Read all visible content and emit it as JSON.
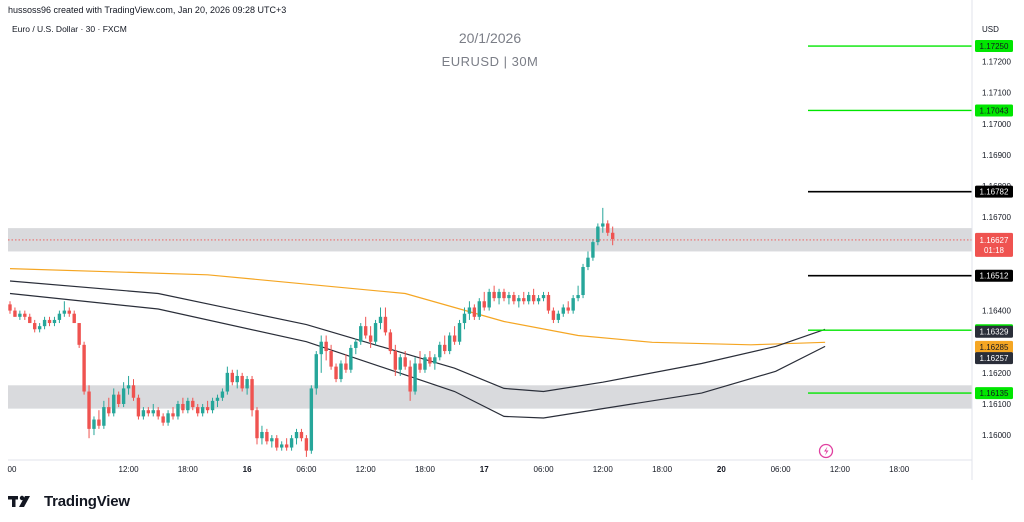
{
  "header": {
    "credit": "hussoss96 created with TradingView.com, Jan 20, 2026 09:28 UTC+3",
    "symbol_line": "Euro / U.S. Dollar · 30 · FXCM",
    "watermark_date": "20/1/2026",
    "watermark_symbol": "EURUSD | 30M",
    "currency": "USD"
  },
  "footer": {
    "brand": "TradingView"
  },
  "colors": {
    "bull": "#26a69a",
    "bear": "#ef5350",
    "ma_orange": "#f5a623",
    "ma_dark": "#2a2e39",
    "green_level": "#00e600",
    "black_level": "#000000",
    "zone": "#d9dadd"
  },
  "chart_data": {
    "type": "candlestick",
    "symbol": "EURUSD",
    "timeframe": "30",
    "currency": "USD",
    "ylim": [
      1.1592,
      1.1734
    ],
    "y_ticks": [
      1.172,
      1.171,
      1.17,
      1.169,
      1.168,
      1.167,
      1.164,
      1.162,
      1.161,
      1.16
    ],
    "x_tick_labels": [
      {
        "label": "00",
        "bar": 0
      },
      {
        "label": "12:00",
        "bar": 24
      },
      {
        "label": "18:00",
        "bar": 36
      },
      {
        "label": "16",
        "bar": 48,
        "bold": true
      },
      {
        "label": "06:00",
        "bar": 60
      },
      {
        "label": "12:00",
        "bar": 72
      },
      {
        "label": "18:00",
        "bar": 84
      },
      {
        "label": "17",
        "bar": 96,
        "bold": true
      },
      {
        "label": "06:00",
        "bar": 108
      },
      {
        "label": "12:00",
        "bar": 120
      },
      {
        "label": "18:00",
        "bar": 132
      },
      {
        "label": "20",
        "bar": 144,
        "bold": true
      },
      {
        "label": "06:00",
        "bar": 156
      },
      {
        "label": "12:00",
        "bar": 168
      },
      {
        "label": "18:00",
        "bar": 180
      }
    ],
    "last_price": {
      "value": 1.16627,
      "countdown": "01:18"
    },
    "horizontal_levels": [
      {
        "value": 1.1725,
        "label": "1.17250",
        "color": "green"
      },
      {
        "value": 1.17043,
        "label": "1.17043",
        "color": "green"
      },
      {
        "value": 1.16782,
        "label": "1.16782",
        "color": "black"
      },
      {
        "value": 1.16512,
        "label": "1.16512",
        "color": "black"
      },
      {
        "value": 1.16337,
        "label": "1.16337",
        "color": "green"
      },
      {
        "value": 1.16135,
        "label": "1.16135",
        "color": "green"
      }
    ],
    "indicator_labels": [
      {
        "value": 1.16329,
        "label": "1.16329",
        "style": "dark"
      },
      {
        "value": 1.16285,
        "label": "1.16285",
        "style": "orange"
      },
      {
        "value": 1.16257,
        "label": "1.16257",
        "style": "dark"
      }
    ],
    "zones": [
      [
        1.1659,
        1.16665
      ],
      [
        1.16085,
        1.1616
      ]
    ],
    "moving_averages": [
      {
        "color": "orange",
        "points": [
          [
            0,
            1.16535
          ],
          [
            40,
            1.16515
          ],
          [
            80,
            1.16455
          ],
          [
            100,
            1.16365
          ],
          [
            115,
            1.1632
          ],
          [
            130,
            1.16298
          ],
          [
            150,
            1.1629
          ],
          [
            165,
            1.16298
          ]
        ]
      },
      {
        "color": "dark",
        "points": [
          [
            0,
            1.16495
          ],
          [
            30,
            1.16455
          ],
          [
            60,
            1.16355
          ],
          [
            90,
            1.16215
          ],
          [
            100,
            1.1615
          ],
          [
            108,
            1.1614
          ],
          [
            120,
            1.1617
          ],
          [
            140,
            1.1623
          ],
          [
            155,
            1.16285
          ],
          [
            165,
            1.1634
          ]
        ]
      },
      {
        "color": "dark",
        "points": [
          [
            0,
            1.16455
          ],
          [
            30,
            1.16405
          ],
          [
            60,
            1.163
          ],
          [
            90,
            1.1614
          ],
          [
            100,
            1.1606
          ],
          [
            108,
            1.16055
          ],
          [
            120,
            1.16085
          ],
          [
            140,
            1.16135
          ],
          [
            155,
            1.16205
          ],
          [
            165,
            1.16285
          ]
        ]
      }
    ],
    "candles": [
      [
        1.1642,
        1.1643,
        1.1639,
        1.164
      ],
      [
        1.164,
        1.1641,
        1.1638,
        1.1638
      ],
      [
        1.1638,
        1.164,
        1.1637,
        1.1639
      ],
      [
        1.1639,
        1.164,
        1.1637,
        1.1638
      ],
      [
        1.1638,
        1.1639,
        1.1636,
        1.1636
      ],
      [
        1.1636,
        1.1637,
        1.1633,
        1.1634
      ],
      [
        1.1634,
        1.1636,
        1.1633,
        1.1635
      ],
      [
        1.1635,
        1.1638,
        1.1634,
        1.1637
      ],
      [
        1.1637,
        1.1638,
        1.1635,
        1.1636
      ],
      [
        1.1636,
        1.1638,
        1.1635,
        1.1637
      ],
      [
        1.1637,
        1.164,
        1.1636,
        1.1639
      ],
      [
        1.1639,
        1.1643,
        1.1638,
        1.164
      ],
      [
        1.164,
        1.1641,
        1.1638,
        1.1639
      ],
      [
        1.1639,
        1.164,
        1.1636,
        1.1636
      ],
      [
        1.1636,
        1.1636,
        1.1628,
        1.1629
      ],
      [
        1.1629,
        1.163,
        1.1613,
        1.1614
      ],
      [
        1.1614,
        1.1616,
        1.1599,
        1.1602
      ],
      [
        1.1602,
        1.1606,
        1.16,
        1.1605
      ],
      [
        1.1605,
        1.1608,
        1.1602,
        1.1603
      ],
      [
        1.1603,
        1.1611,
        1.1602,
        1.1609
      ],
      [
        1.1609,
        1.1612,
        1.1606,
        1.1607
      ],
      [
        1.1607,
        1.1615,
        1.1606,
        1.1613
      ],
      [
        1.1613,
        1.1614,
        1.1609,
        1.161
      ],
      [
        1.161,
        1.1617,
        1.1609,
        1.1615
      ],
      [
        1.1615,
        1.1619,
        1.1613,
        1.1616
      ],
      [
        1.1616,
        1.1618,
        1.1611,
        1.1612
      ],
      [
        1.1612,
        1.1613,
        1.1605,
        1.1606
      ],
      [
        1.1606,
        1.1609,
        1.1605,
        1.1608
      ],
      [
        1.1608,
        1.1609,
        1.1606,
        1.1607
      ],
      [
        1.1607,
        1.161,
        1.1606,
        1.1608
      ],
      [
        1.1608,
        1.1609,
        1.1605,
        1.1606
      ],
      [
        1.1606,
        1.1607,
        1.1603,
        1.1604
      ],
      [
        1.1604,
        1.1608,
        1.1603,
        1.1607
      ],
      [
        1.1607,
        1.1609,
        1.1605,
        1.1606
      ],
      [
        1.1606,
        1.1611,
        1.1605,
        1.161
      ],
      [
        1.161,
        1.1612,
        1.1607,
        1.1608
      ],
      [
        1.1608,
        1.1612,
        1.1607,
        1.1611
      ],
      [
        1.1611,
        1.1612,
        1.1608,
        1.1609
      ],
      [
        1.1609,
        1.161,
        1.1606,
        1.1607
      ],
      [
        1.1607,
        1.161,
        1.1606,
        1.1609
      ],
      [
        1.1609,
        1.1611,
        1.1607,
        1.1608
      ],
      [
        1.1608,
        1.1612,
        1.1607,
        1.1611
      ],
      [
        1.1611,
        1.1613,
        1.1609,
        1.1612
      ],
      [
        1.1612,
        1.1615,
        1.1611,
        1.1614
      ],
      [
        1.1614,
        1.1622,
        1.1613,
        1.162
      ],
      [
        1.162,
        1.1621,
        1.1616,
        1.1617
      ],
      [
        1.1617,
        1.1621,
        1.1615,
        1.1619
      ],
      [
        1.1619,
        1.162,
        1.1614,
        1.1615
      ],
      [
        1.1615,
        1.1619,
        1.1613,
        1.1618
      ],
      [
        1.1618,
        1.1619,
        1.1606,
        1.1608
      ],
      [
        1.1608,
        1.1609,
        1.1597,
        1.1599
      ],
      [
        1.1599,
        1.1603,
        1.1597,
        1.1601
      ],
      [
        1.1601,
        1.1602,
        1.1597,
        1.1598
      ],
      [
        1.1598,
        1.16,
        1.1596,
        1.1599
      ],
      [
        1.1599,
        1.16,
        1.1595,
        1.1596
      ],
      [
        1.1596,
        1.1598,
        1.1595,
        1.1597
      ],
      [
        1.1597,
        1.1599,
        1.1595,
        1.1596
      ],
      [
        1.1596,
        1.16,
        1.1595,
        1.1599
      ],
      [
        1.1599,
        1.1602,
        1.1597,
        1.1601
      ],
      [
        1.1601,
        1.1602,
        1.1598,
        1.1599
      ],
      [
        1.1599,
        1.16,
        1.1593,
        1.1595
      ],
      [
        1.1595,
        1.1616,
        1.1594,
        1.1615
      ],
      [
        1.1615,
        1.1627,
        1.1613,
        1.1626
      ],
      [
        1.1626,
        1.1632,
        1.162,
        1.163
      ],
      [
        1.163,
        1.1632,
        1.1624,
        1.1627
      ],
      [
        1.1627,
        1.1629,
        1.1621,
        1.1622
      ],
      [
        1.1622,
        1.1623,
        1.1617,
        1.1618
      ],
      [
        1.1618,
        1.1624,
        1.1617,
        1.1623
      ],
      [
        1.1623,
        1.1626,
        1.162,
        1.1621
      ],
      [
        1.1621,
        1.1629,
        1.162,
        1.1628
      ],
      [
        1.1628,
        1.1631,
        1.1626,
        1.163
      ],
      [
        1.163,
        1.1636,
        1.1629,
        1.1635
      ],
      [
        1.1635,
        1.1638,
        1.1631,
        1.1632
      ],
      [
        1.1632,
        1.1635,
        1.1628,
        1.163
      ],
      [
        1.163,
        1.1637,
        1.1629,
        1.1636
      ],
      [
        1.1636,
        1.1641,
        1.1634,
        1.1638
      ],
      [
        1.1638,
        1.1641,
        1.1632,
        1.1633
      ],
      [
        1.1633,
        1.1634,
        1.1626,
        1.1627
      ],
      [
        1.1627,
        1.1629,
        1.1619,
        1.1621
      ],
      [
        1.1621,
        1.1626,
        1.1619,
        1.1625
      ],
      [
        1.1625,
        1.1627,
        1.1621,
        1.1622
      ],
      [
        1.1622,
        1.1624,
        1.1611,
        1.1614
      ],
      [
        1.1614,
        1.1625,
        1.1613,
        1.1623
      ],
      [
        1.1623,
        1.1627,
        1.162,
        1.1621
      ],
      [
        1.1621,
        1.1626,
        1.162,
        1.1625
      ],
      [
        1.1625,
        1.1627,
        1.1622,
        1.1623
      ],
      [
        1.1623,
        1.1626,
        1.1621,
        1.1625
      ],
      [
        1.1625,
        1.163,
        1.1624,
        1.1629
      ],
      [
        1.1629,
        1.1632,
        1.1626,
        1.1627
      ],
      [
        1.1627,
        1.1633,
        1.1626,
        1.1632
      ],
      [
        1.1632,
        1.1635,
        1.1629,
        1.163
      ],
      [
        1.163,
        1.1637,
        1.1629,
        1.1636
      ],
      [
        1.1636,
        1.1641,
        1.1634,
        1.1639
      ],
      [
        1.1639,
        1.1643,
        1.1637,
        1.1641
      ],
      [
        1.1641,
        1.1642,
        1.1637,
        1.1638
      ],
      [
        1.1638,
        1.1644,
        1.1637,
        1.1643
      ],
      [
        1.1643,
        1.1646,
        1.164,
        1.1641
      ],
      [
        1.1641,
        1.1647,
        1.164,
        1.1646
      ],
      [
        1.1646,
        1.1648,
        1.1643,
        1.1644
      ],
      [
        1.1644,
        1.1647,
        1.1642,
        1.1646
      ],
      [
        1.1646,
        1.1647,
        1.1643,
        1.1644
      ],
      [
        1.1644,
        1.1646,
        1.1642,
        1.1645
      ],
      [
        1.1645,
        1.1646,
        1.1642,
        1.1643
      ],
      [
        1.1643,
        1.1645,
        1.1641,
        1.1644
      ],
      [
        1.1644,
        1.1646,
        1.1642,
        1.1643
      ],
      [
        1.1643,
        1.1646,
        1.1642,
        1.1645
      ],
      [
        1.1645,
        1.1647,
        1.1642,
        1.1643
      ],
      [
        1.1643,
        1.1645,
        1.1642,
        1.1644
      ],
      [
        1.1644,
        1.1646,
        1.1643,
        1.1645
      ],
      [
        1.1645,
        1.1646,
        1.1639,
        1.164
      ],
      [
        1.164,
        1.1641,
        1.1636,
        1.1637
      ],
      [
        1.1637,
        1.164,
        1.1636,
        1.1639
      ],
      [
        1.1639,
        1.1642,
        1.1638,
        1.1641
      ],
      [
        1.1641,
        1.1643,
        1.1639,
        1.164
      ],
      [
        1.164,
        1.1645,
        1.1639,
        1.1644
      ],
      [
        1.1644,
        1.1648,
        1.1643,
        1.1645
      ],
      [
        1.1645,
        1.1655,
        1.1644,
        1.1654
      ],
      [
        1.1654,
        1.1659,
        1.1653,
        1.1657
      ],
      [
        1.1657,
        1.1663,
        1.1656,
        1.1662
      ],
      [
        1.1662,
        1.1668,
        1.1661,
        1.1667
      ],
      [
        1.1667,
        1.1673,
        1.1665,
        1.1668
      ],
      [
        1.1668,
        1.1669,
        1.1664,
        1.1665
      ],
      [
        1.1665,
        1.1667,
        1.1661,
        1.1663
      ]
    ]
  }
}
